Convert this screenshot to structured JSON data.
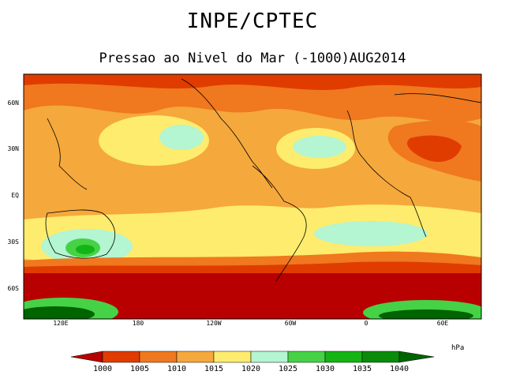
{
  "header": {
    "title": "INPE/CPTEC",
    "subtitle": "Pressao ao Nivel do Mar (-1000)AUG2014"
  },
  "map": {
    "lat_labels": [
      "60N",
      "30N",
      "EQ",
      "30S",
      "60S"
    ],
    "lon_labels": [
      "120E",
      "180",
      "120W",
      "60W",
      "0",
      "60E"
    ]
  },
  "legend": {
    "unit": "hPa",
    "levels": [
      "1000",
      "1005",
      "1010",
      "1015",
      "1020",
      "1025",
      "1030",
      "1035",
      "1040"
    ],
    "colors": [
      "#b80000",
      "#e03c00",
      "#f0781e",
      "#f5a83c",
      "#fdec6e",
      "#b4f5d2",
      "#46d246",
      "#14b414",
      "#0a8c0a",
      "#006400"
    ]
  }
}
